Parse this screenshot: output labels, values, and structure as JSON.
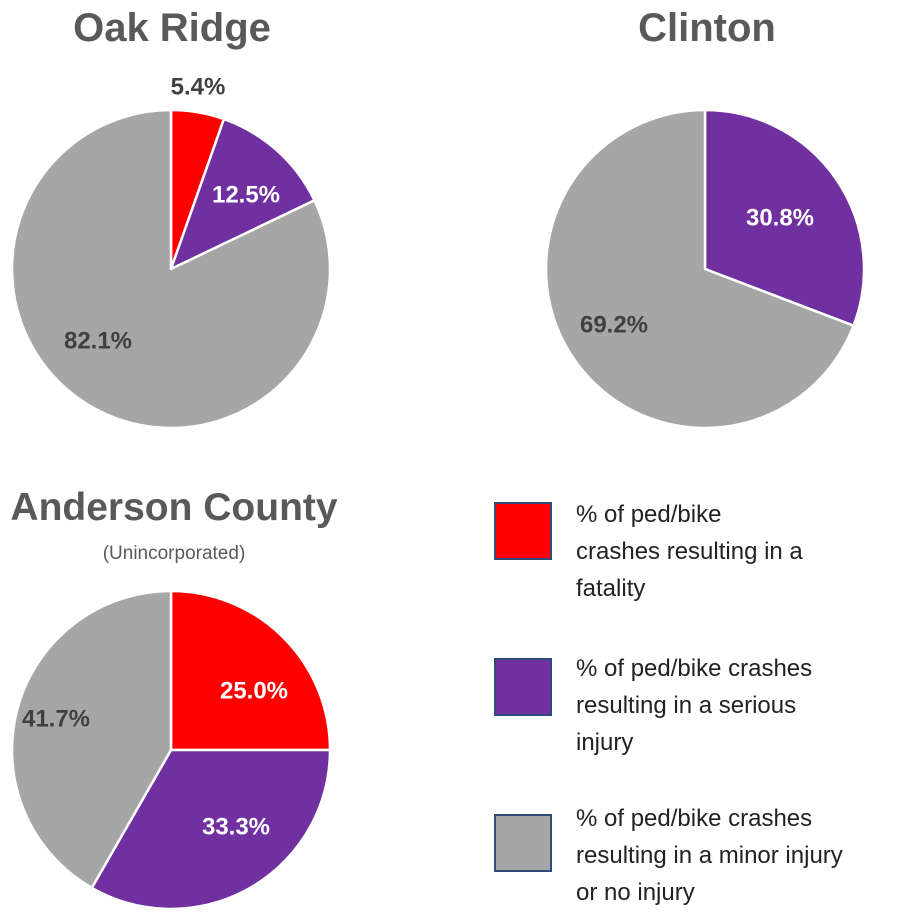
{
  "colors": {
    "fatality": "#ff0000",
    "serious": "#7030a0",
    "minor": "#a6a6a6",
    "dark_label": "#404040",
    "light_label": "#ffffff"
  },
  "chart_data": [
    {
      "type": "pie",
      "title": "Oak Ridge",
      "subtitle": "",
      "slices": [
        {
          "category": "fatality",
          "value": 5.4,
          "label": "5.4%"
        },
        {
          "category": "serious",
          "value": 12.5,
          "label": "12.5%"
        },
        {
          "category": "minor",
          "value": 82.1,
          "label": "82.1%"
        }
      ]
    },
    {
      "type": "pie",
      "title": "Clinton",
      "subtitle": "",
      "slices": [
        {
          "category": "serious",
          "value": 30.8,
          "label": "30.8%"
        },
        {
          "category": "minor",
          "value": 69.2,
          "label": "69.2%"
        }
      ]
    },
    {
      "type": "pie",
      "title": "Anderson County",
      "subtitle": "(Unincorporated)",
      "slices": [
        {
          "category": "fatality",
          "value": 25.0,
          "label": "25.0%"
        },
        {
          "category": "serious",
          "value": 33.3,
          "label": "33.3%"
        },
        {
          "category": "minor",
          "value": 41.7,
          "label": "41.7%"
        }
      ]
    }
  ],
  "legend": {
    "placement": "bottom-right",
    "items": [
      {
        "category": "fatality",
        "lines": [
          "% of ped/bike",
          "crashes resulting in a",
          "fatality"
        ]
      },
      {
        "category": "serious",
        "lines": [
          "% of ped/bike crashes",
          "resulting in a serious",
          "injury"
        ]
      },
      {
        "category": "minor",
        "lines": [
          "% of ped/bike crashes",
          "resulting in a minor injury",
          "or no injury"
        ]
      }
    ]
  }
}
